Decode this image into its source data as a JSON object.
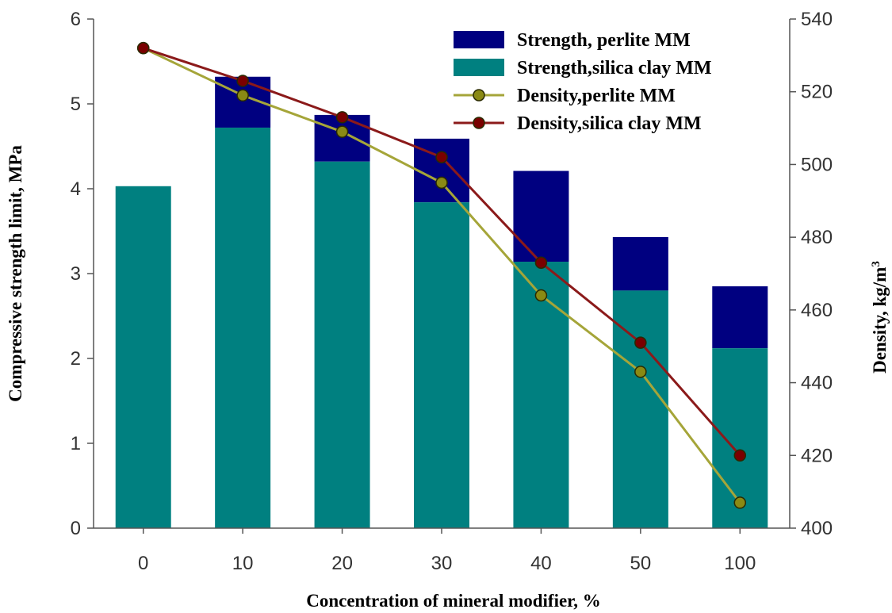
{
  "chart_data": {
    "type": "bar",
    "categories": [
      "0",
      "10",
      "20",
      "30",
      "40",
      "50",
      "100"
    ],
    "xlabel": "Concentration of mineral modifier, %",
    "ylabel": "Compressive strength limit, MPa",
    "y2label_main": "Density, kg/m",
    "y2label_sup": "3",
    "ylim": [
      0,
      6
    ],
    "y2lim": [
      400,
      540
    ],
    "yticks": [
      "0",
      "1",
      "2",
      "3",
      "4",
      "5",
      "6"
    ],
    "y2ticks": [
      "400",
      "420",
      "440",
      "460",
      "480",
      "500",
      "520",
      "540"
    ],
    "legend_position": "top-right",
    "grid": false,
    "bar_series": [
      {
        "name": "Strength, perlite MM",
        "color": "#000080",
        "values": [
          4.03,
          5.32,
          4.87,
          4.59,
          4.21,
          3.43,
          2.85
        ]
      },
      {
        "name": "Strength,silica clay MM",
        "color": "#008080",
        "values": [
          4.03,
          4.72,
          4.32,
          3.84,
          3.14,
          2.8,
          2.12
        ]
      }
    ],
    "line_series": [
      {
        "name": "Density,perlite MM",
        "color": "#a5a539",
        "marker_color": "#8a8a14",
        "values": [
          532,
          519,
          509,
          495,
          464,
          443,
          407
        ]
      },
      {
        "name": "Density,silica clay MM",
        "color": "#8b1a1a",
        "marker_color": "#7a0000",
        "values": [
          532,
          523,
          513,
          502,
          473,
          451,
          420
        ]
      }
    ]
  }
}
